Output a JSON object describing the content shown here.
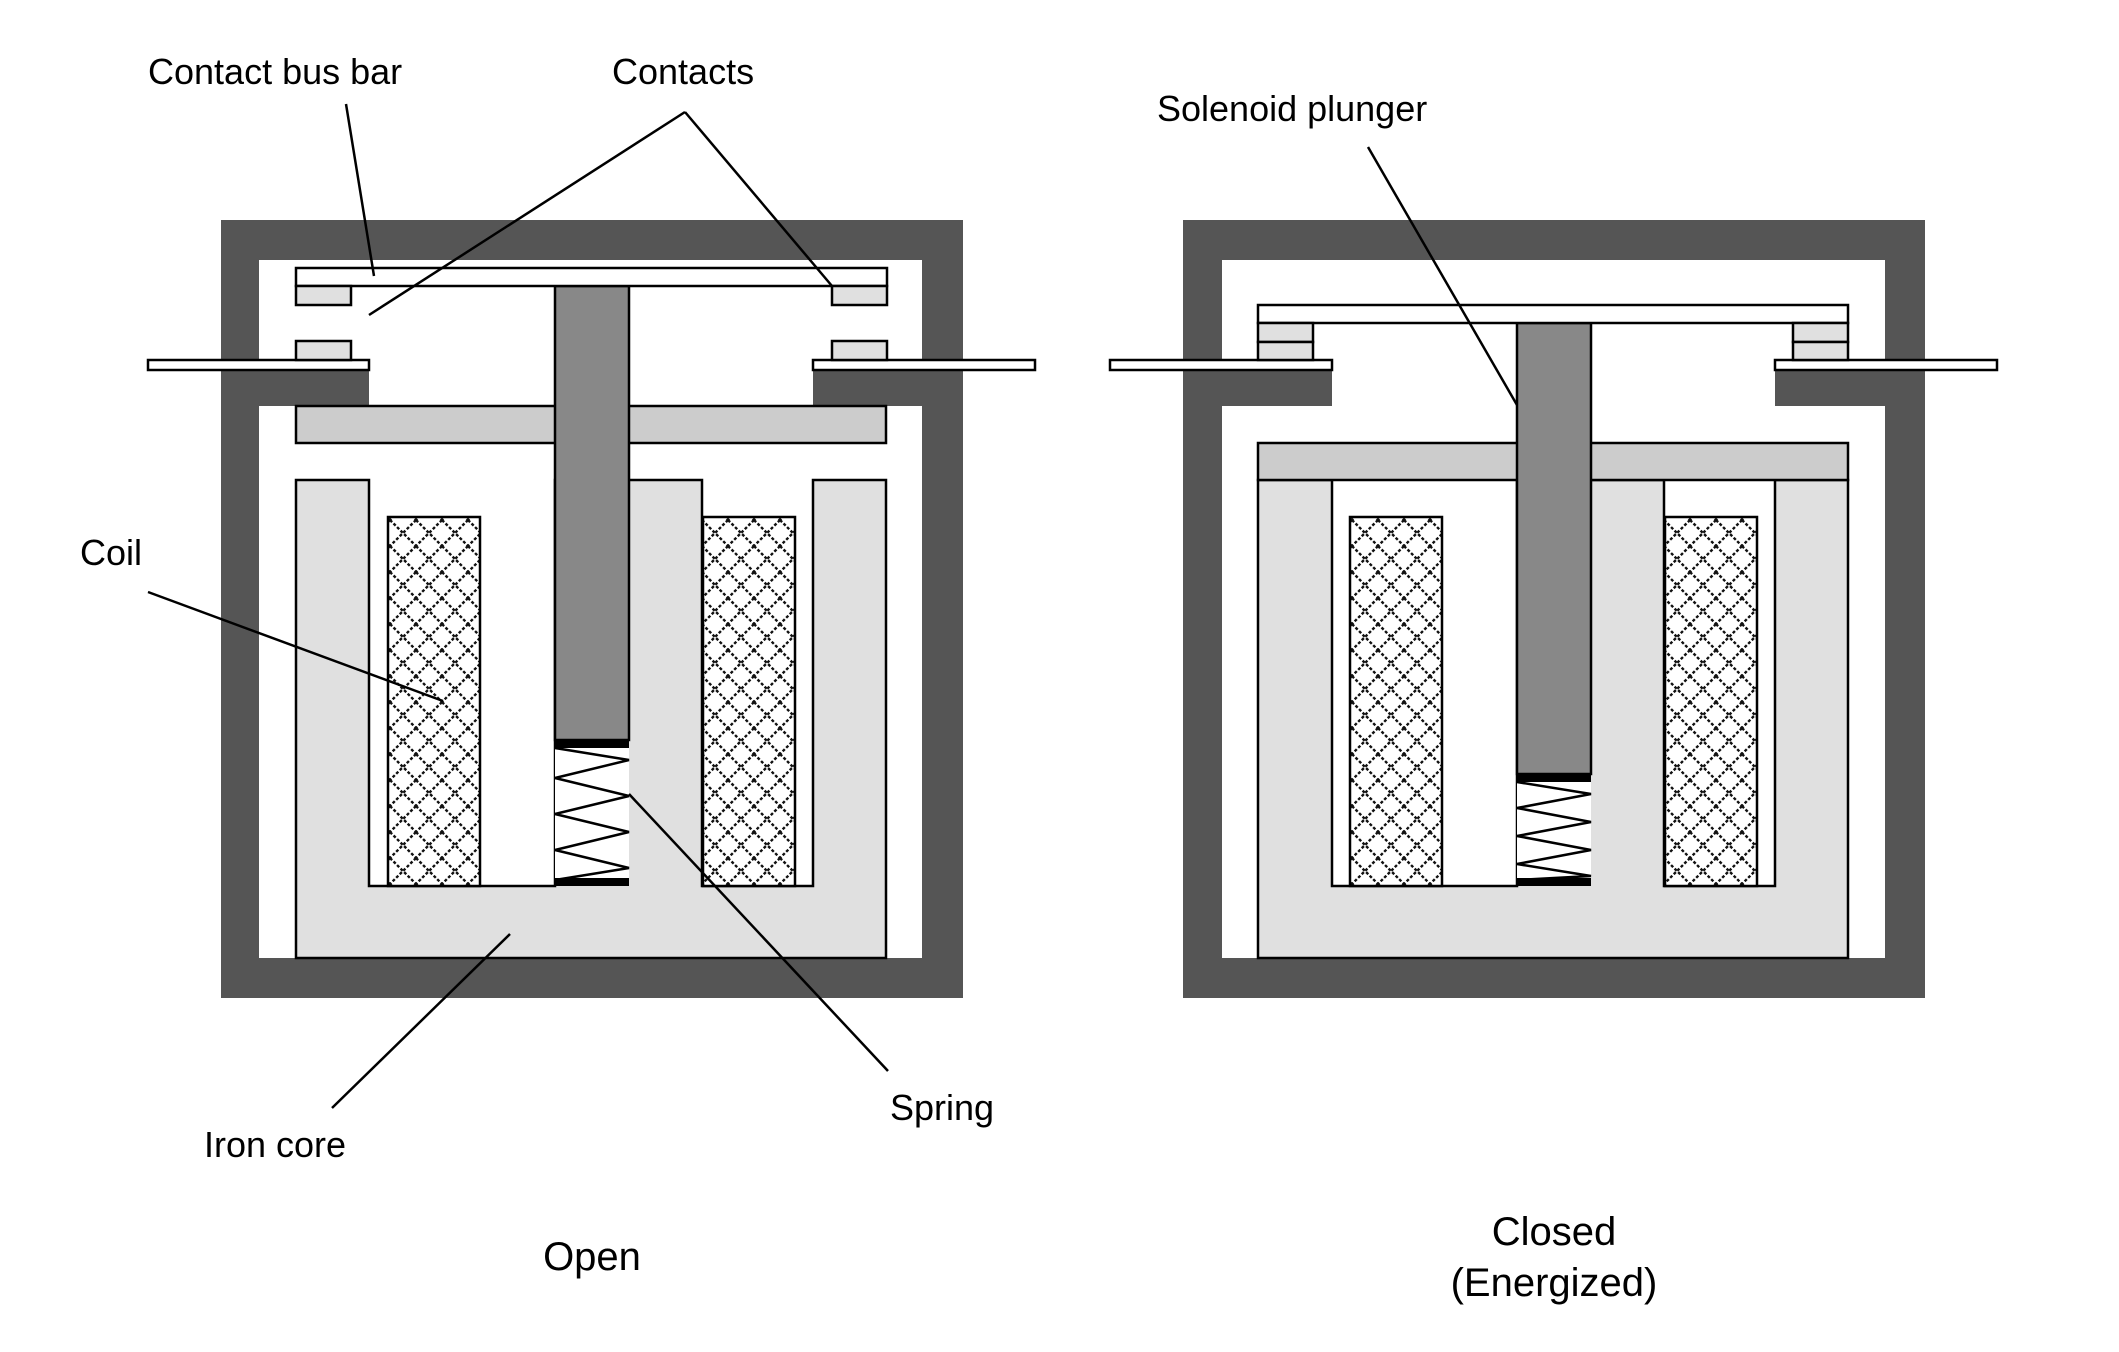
{
  "labels": {
    "contact_bus_bar": "Contact bus bar",
    "contacts": "Contacts",
    "coil": "Coil",
    "iron_core": "Iron core",
    "spring": "Spring",
    "solenoid_plunger": "Solenoid plunger"
  },
  "captions": {
    "open": "Open",
    "closed_line1": "Closed",
    "closed_line2": "(Energized)"
  },
  "colors": {
    "housing": "#555555",
    "iron_core": "#e0e0e0",
    "armature": "#cccccc",
    "plunger": "#888888",
    "contact": "#e0e0e0",
    "outline": "#000000",
    "background": "#ffffff"
  }
}
